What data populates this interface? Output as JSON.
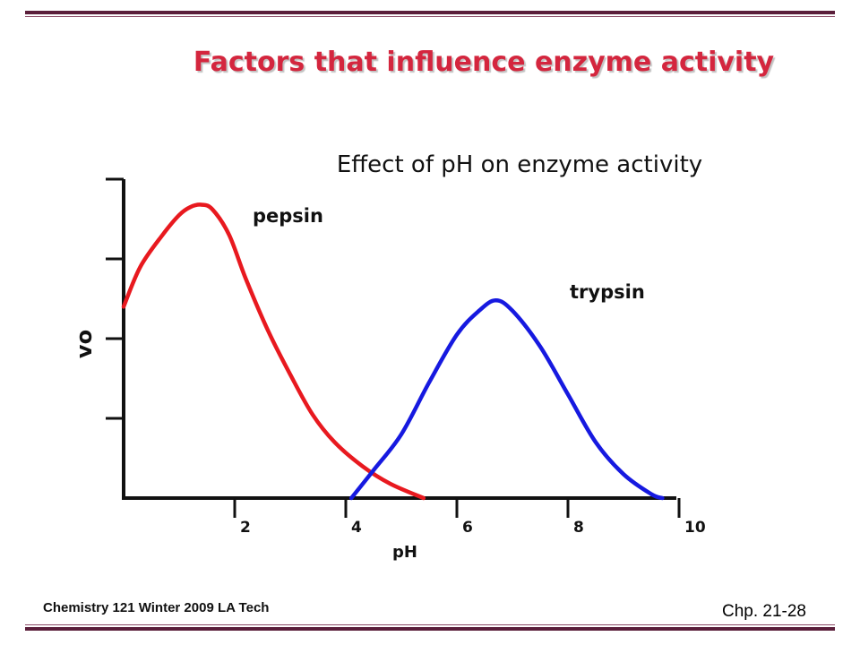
{
  "slide": {
    "title": "Factors that influence enzyme activity",
    "footer_left": "Chemistry 121 Winter 2009 LA Tech",
    "footer_right": "Chp. 21-28"
  },
  "chart_data": {
    "type": "line",
    "title": "Effect of pH on enzyme activity",
    "xlabel": "pH",
    "ylabel": "vo",
    "x_ticks": [
      "2",
      "4",
      "6",
      "8",
      "10"
    ],
    "xlim": [
      0,
      10
    ],
    "ylim": [
      0,
      4
    ],
    "grid": false,
    "series": [
      {
        "name": "pepsin",
        "color": "#e8191f",
        "points": [
          [
            0,
            2.4
          ],
          [
            0.3,
            2.9
          ],
          [
            0.7,
            3.3
          ],
          [
            1.0,
            3.55
          ],
          [
            1.2,
            3.65
          ],
          [
            1.4,
            3.68
          ],
          [
            1.6,
            3.62
          ],
          [
            1.9,
            3.3
          ],
          [
            2.2,
            2.75
          ],
          [
            2.6,
            2.1
          ],
          [
            3.0,
            1.55
          ],
          [
            3.4,
            1.05
          ],
          [
            3.8,
            0.7
          ],
          [
            4.3,
            0.4
          ],
          [
            4.8,
            0.18
          ],
          [
            5.4,
            0.0
          ]
        ]
      },
      {
        "name": "trypsin",
        "color": "#1619e0",
        "points": [
          [
            4.1,
            0.0
          ],
          [
            4.5,
            0.35
          ],
          [
            5.0,
            0.8
          ],
          [
            5.5,
            1.45
          ],
          [
            6.0,
            2.05
          ],
          [
            6.4,
            2.35
          ],
          [
            6.7,
            2.48
          ],
          [
            7.0,
            2.35
          ],
          [
            7.5,
            1.9
          ],
          [
            8.0,
            1.3
          ],
          [
            8.5,
            0.7
          ],
          [
            9.0,
            0.3
          ],
          [
            9.5,
            0.05
          ],
          [
            9.7,
            0.0
          ]
        ]
      }
    ]
  }
}
